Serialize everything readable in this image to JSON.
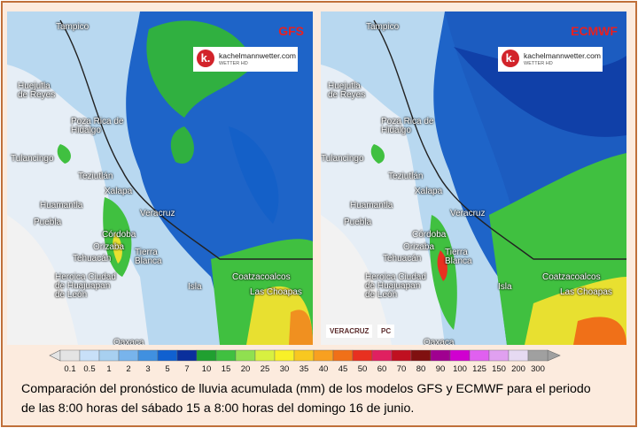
{
  "panels": [
    {
      "model": "GFS",
      "watermark": "kachelmannwetter.com",
      "watermark_sub": "WETTER HD",
      "places": [
        "Tampico",
        "Huejutla de Reyes",
        "Poza Rica de Hidalgo",
        "Tulancingo",
        "Teziutlán",
        "Xalapa",
        "Huamantla",
        "Puebla",
        "Veracruz",
        "Córdoba",
        "Orizaba",
        "Tehuacán",
        "Tierra Blanca",
        "Heroica Ciudad de Huajuapan de León",
        "Isla",
        "Coatzacoalcos",
        "Las Choapas",
        "Oaxaca"
      ]
    },
    {
      "model": "ECMWF",
      "watermark": "kachelmannwetter.com",
      "watermark_sub": "WETTER HD",
      "places": [
        "Tampico",
        "Huejutla de Reyes",
        "Poza Rica de Hidalgo",
        "Tulancingo",
        "Teziutlán",
        "Xalapa",
        "Huamantla",
        "Puebla",
        "Veracruz",
        "Córdoba",
        "Orizaba",
        "Tehuacán",
        "Tierra Blanca",
        "Heroica Ciudad de Huajuapan de León",
        "Isla",
        "Coatzacoalcos",
        "Las Choapas",
        "Oaxaca"
      ],
      "logos": [
        "VERACRUZ",
        "PC"
      ]
    }
  ],
  "colorbar": {
    "values": [
      0.1,
      0.5,
      1,
      2,
      3,
      5,
      7,
      10,
      15,
      20,
      25,
      30,
      35,
      40,
      45,
      50,
      60,
      70,
      80,
      90,
      100,
      125,
      150,
      200,
      300
    ],
    "colors": [
      "#e4e4e4",
      "#c8e0f8",
      "#a8d0f0",
      "#78b4ec",
      "#4090e0",
      "#1060d0",
      "#0a2f9c",
      "#20a030",
      "#40c040",
      "#90e050",
      "#d8f040",
      "#f8f028",
      "#f8c820",
      "#f8a020",
      "#f07018",
      "#e83020",
      "#e02060",
      "#c01020",
      "#801010",
      "#a00090",
      "#d000d0",
      "#e060f0",
      "#e0a0f0",
      "#e6daf2",
      "#a0a0a0"
    ]
  },
  "caption": [
    "Comparación del pronóstico de lluvia acumulada (mm) de los modelos GFS y ECMWF para el periodo",
    "de las 8:00 horas del sábado 15 a 8:00 horas del domingo 16 de junio."
  ]
}
